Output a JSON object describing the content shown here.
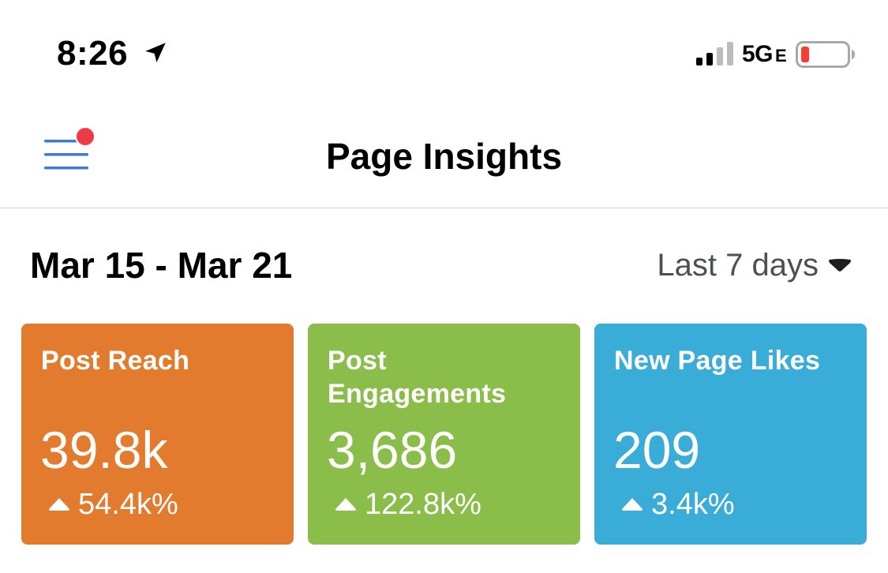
{
  "status_bar": {
    "time": "8:26",
    "network": "5G",
    "network_suffix": "E",
    "icons": [
      "location-arrow-icon",
      "signal-bars-icon",
      "battery-low-icon"
    ],
    "battery_color": "#ff3b30"
  },
  "header": {
    "title": "Page Insights",
    "menu_icon": "hamburger-menu-icon",
    "notification_dot_color": "#f03a47",
    "menu_color": "#3b7bd6"
  },
  "date_row": {
    "range": "Mar 15 - Mar 21",
    "period": "Last 7 days",
    "period_icon": "caret-down-icon"
  },
  "cards": [
    {
      "title": "Post Reach",
      "value": "39.8k",
      "change": "54.4k%",
      "color": "#e37b2e",
      "trend_icon": "up-arrow-icon"
    },
    {
      "title": "Post Engagements",
      "value": "3,686",
      "change": "122.8k%",
      "color": "#8bbd4b",
      "trend_icon": "up-arrow-icon"
    },
    {
      "title": "New Page Likes",
      "value": "209",
      "change": "3.4k%",
      "color": "#39acd8",
      "trend_icon": "up-arrow-icon"
    }
  ]
}
